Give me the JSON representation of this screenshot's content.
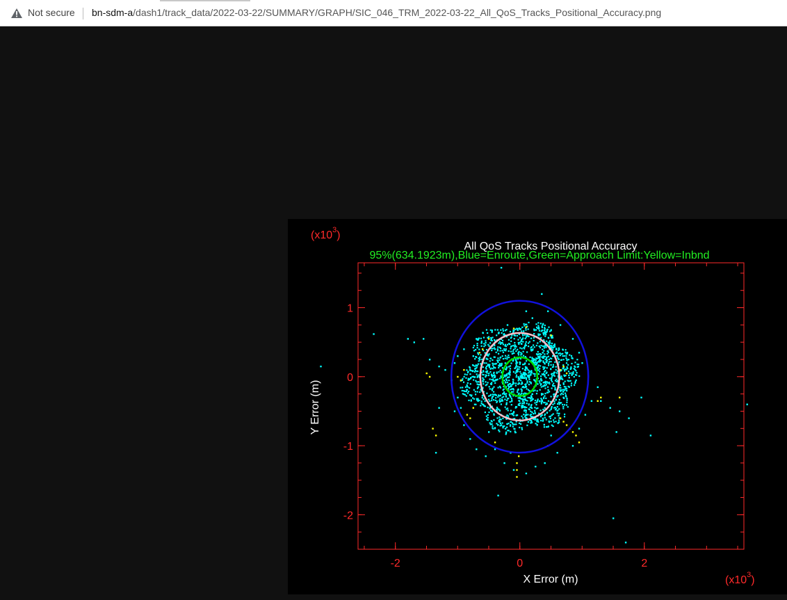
{
  "browser": {
    "security_label": "Not secure",
    "url_host": "bn-sdm-a",
    "url_path": "/dash1/track_data/2022-03-22/SUMMARY/GRAPH/SIC_046_TRM_2022-03-22_All_QoS_Tracks_Positional_Accuracy.png",
    "icons": {
      "security": "warning-triangle-icon"
    }
  },
  "colors": {
    "viewer_bg": "#111111",
    "plot_bg": "#000000",
    "axis": "#ff2a2a",
    "points": "#00ffff",
    "inbound_points": "#ffff00",
    "enroute_ellipse": "#1111dd",
    "approach_ellipse": "#00dd00",
    "accuracy_ellipse": "#ffc0cb"
  },
  "chart_data": {
    "type": "scatter",
    "title": "All QoS Tracks Positional Accuracy",
    "subtitle": "95%(634.1923m),Blue=Enroute,Green=Approach Limit:Yellow=Inbnd",
    "xlabel": "X Error (m)",
    "ylabel": "Y Error (m)",
    "x_multiplier": "(x10",
    "y_multiplier": "(x10",
    "multiplier_exponent": "3",
    "multiplier_close": ")",
    "xlim": [
      -2.6,
      3.6
    ],
    "ylim": [
      -2.5,
      1.65
    ],
    "x_ticks": [
      {
        "value": -2,
        "label": "-2"
      },
      {
        "value": 0,
        "label": "0"
      },
      {
        "value": 2,
        "label": "2"
      }
    ],
    "y_ticks": [
      {
        "value": 1,
        "label": "1"
      },
      {
        "value": 0,
        "label": "0"
      },
      {
        "value": -1,
        "label": "-1"
      },
      {
        "value": -2,
        "label": "-2"
      }
    ],
    "grid": false,
    "ellipses": [
      {
        "name": "Enroute",
        "color": "#1111dd",
        "cx": 0,
        "cy": 0,
        "rx": 1.1,
        "ry": 1.1
      },
      {
        "name": "95%",
        "color": "#ffc0cb",
        "cx": 0,
        "cy": 0,
        "rx": 0.634,
        "ry": 0.634
      },
      {
        "name": "Approach",
        "color": "#00dd00",
        "cx": 0,
        "cy": 0,
        "rx": 0.28,
        "ry": 0.28
      }
    ],
    "series": [
      {
        "name": "All",
        "color": "#00ffff",
        "points": [
          [
            -1.8,
            0.55
          ],
          [
            -1.7,
            0.5
          ],
          [
            -1.55,
            0.55
          ],
          [
            -1.45,
            0.25
          ],
          [
            -1.3,
            0.15
          ],
          [
            -1.2,
            0.1
          ],
          [
            -1.0,
            -0.3
          ],
          [
            -0.95,
            -0.45
          ],
          [
            -1.05,
            -0.5
          ],
          [
            -0.9,
            -0.7
          ],
          [
            -0.8,
            -0.9
          ],
          [
            -0.7,
            -1.05
          ],
          [
            -0.55,
            -1.15
          ],
          [
            -0.4,
            -1.05
          ],
          [
            -0.25,
            -1.25
          ],
          [
            -0.1,
            -1.35
          ],
          [
            0.1,
            -1.4
          ],
          [
            0.25,
            -1.3
          ],
          [
            0.4,
            -1.25
          ],
          [
            0.6,
            -1.1
          ],
          [
            0.85,
            -1.0
          ],
          [
            0.95,
            -0.75
          ],
          [
            1.05,
            -0.55
          ],
          [
            1.15,
            -0.35
          ],
          [
            1.3,
            -0.35
          ],
          [
            1.45,
            -0.45
          ],
          [
            1.6,
            -0.5
          ],
          [
            1.75,
            -0.6
          ],
          [
            1.55,
            -0.8
          ],
          [
            0.95,
            0.35
          ],
          [
            0.85,
            0.55
          ],
          [
            0.65,
            0.75
          ],
          [
            0.45,
            0.95
          ],
          [
            0.35,
            1.2
          ],
          [
            0.2,
            0.85
          ],
          [
            -0.2,
            0.75
          ],
          [
            -0.45,
            0.65
          ],
          [
            -0.7,
            0.55
          ],
          [
            -0.9,
            0.4
          ],
          [
            -1.05,
            0.2
          ],
          [
            -1.1,
            -0.05
          ],
          [
            0.6,
            0.3
          ],
          [
            0.7,
            -0.3
          ],
          [
            -0.6,
            -0.4
          ],
          [
            -0.4,
            0.4
          ],
          [
            0.4,
            -0.45
          ],
          [
            -0.8,
            0.1
          ],
          [
            0.8,
            0.05
          ],
          [
            0.3,
            0.6
          ],
          [
            -0.3,
            -0.7
          ],
          [
            -1.0,
            0.3
          ],
          [
            1.0,
            0.2
          ],
          [
            -0.5,
            -0.8
          ],
          [
            0.5,
            -0.85
          ],
          [
            -1.3,
            -0.45
          ],
          [
            1.25,
            -0.15
          ],
          [
            0.1,
            0.95
          ],
          [
            -0.15,
            -1.1
          ],
          [
            -3.2,
            0.15
          ],
          [
            3.65,
            -0.4
          ],
          [
            -2.35,
            0.62
          ],
          [
            1.5,
            -2.05
          ],
          [
            1.7,
            -2.4
          ],
          [
            -0.3,
            1.58
          ],
          [
            -1.35,
            -1.1
          ],
          [
            -0.35,
            -1.72
          ],
          [
            2.1,
            -0.85
          ],
          [
            1.95,
            -0.3
          ],
          [
            -0.75,
            0.3
          ],
          [
            0.75,
            -0.2
          ],
          [
            -0.2,
            0.2
          ],
          [
            0.2,
            -0.25
          ]
        ]
      },
      {
        "name": "Inbnd",
        "color": "#ffff00",
        "points": [
          [
            -1.0,
            0.0
          ],
          [
            -0.95,
            -0.05
          ],
          [
            -0.9,
            0.1
          ],
          [
            -0.85,
            -0.55
          ],
          [
            -0.8,
            -0.6
          ],
          [
            -0.75,
            -0.45
          ],
          [
            -0.65,
            0.35
          ],
          [
            -0.6,
            0.4
          ],
          [
            0.65,
            0.1
          ],
          [
            0.7,
            0.15
          ],
          [
            0.75,
            0.05
          ],
          [
            0.65,
            -0.6
          ],
          [
            0.7,
            -0.65
          ],
          [
            0.75,
            -0.7
          ],
          [
            0.8,
            -0.75
          ],
          [
            0.85,
            -0.8
          ],
          [
            0.9,
            -0.85
          ],
          [
            0.95,
            -0.95
          ],
          [
            -0.05,
            -1.25
          ],
          [
            -0.05,
            -1.35
          ],
          [
            -0.05,
            -1.45
          ],
          [
            -0.02,
            -1.15
          ],
          [
            -0.1,
            0.7
          ],
          [
            0.1,
            0.72
          ],
          [
            -1.35,
            -0.85
          ],
          [
            -1.4,
            -0.75
          ],
          [
            -1.5,
            0.05
          ],
          [
            -1.45,
            0.0
          ],
          [
            1.25,
            -0.35
          ],
          [
            1.3,
            -0.3
          ],
          [
            1.6,
            -0.3
          ],
          [
            -0.5,
            0.55
          ],
          [
            0.5,
            0.6
          ],
          [
            -0.4,
            -0.95
          ],
          [
            0.45,
            -1.0
          ]
        ]
      }
    ]
  }
}
